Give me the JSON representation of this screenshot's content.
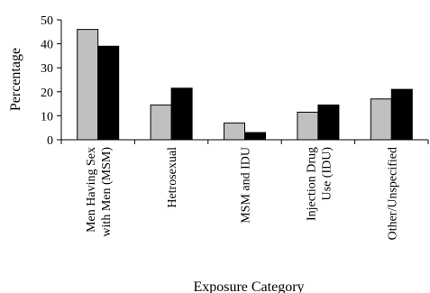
{
  "chart_data": {
    "type": "bar",
    "categories": [
      [
        "Men Having Sex",
        "with Men (MSM)"
      ],
      [
        "Hetrosexual"
      ],
      [
        "MSM and IDU"
      ],
      [
        "Injection Drug",
        "Use (IDU)"
      ],
      [
        "Other/Unspecified"
      ]
    ],
    "series": [
      {
        "values": [
          46,
          14.5,
          7,
          11.5,
          17
        ],
        "color": "#c0c0c0"
      },
      {
        "values": [
          39,
          21.5,
          3,
          14.5,
          21
        ],
        "color": "#000000"
      }
    ],
    "ylim": [
      0,
      50
    ],
    "yticks": [
      0,
      10,
      20,
      30,
      40,
      50
    ],
    "ylabel": "Percentage",
    "xlabel": "Exposure Category",
    "grid": false,
    "legend": "none"
  }
}
